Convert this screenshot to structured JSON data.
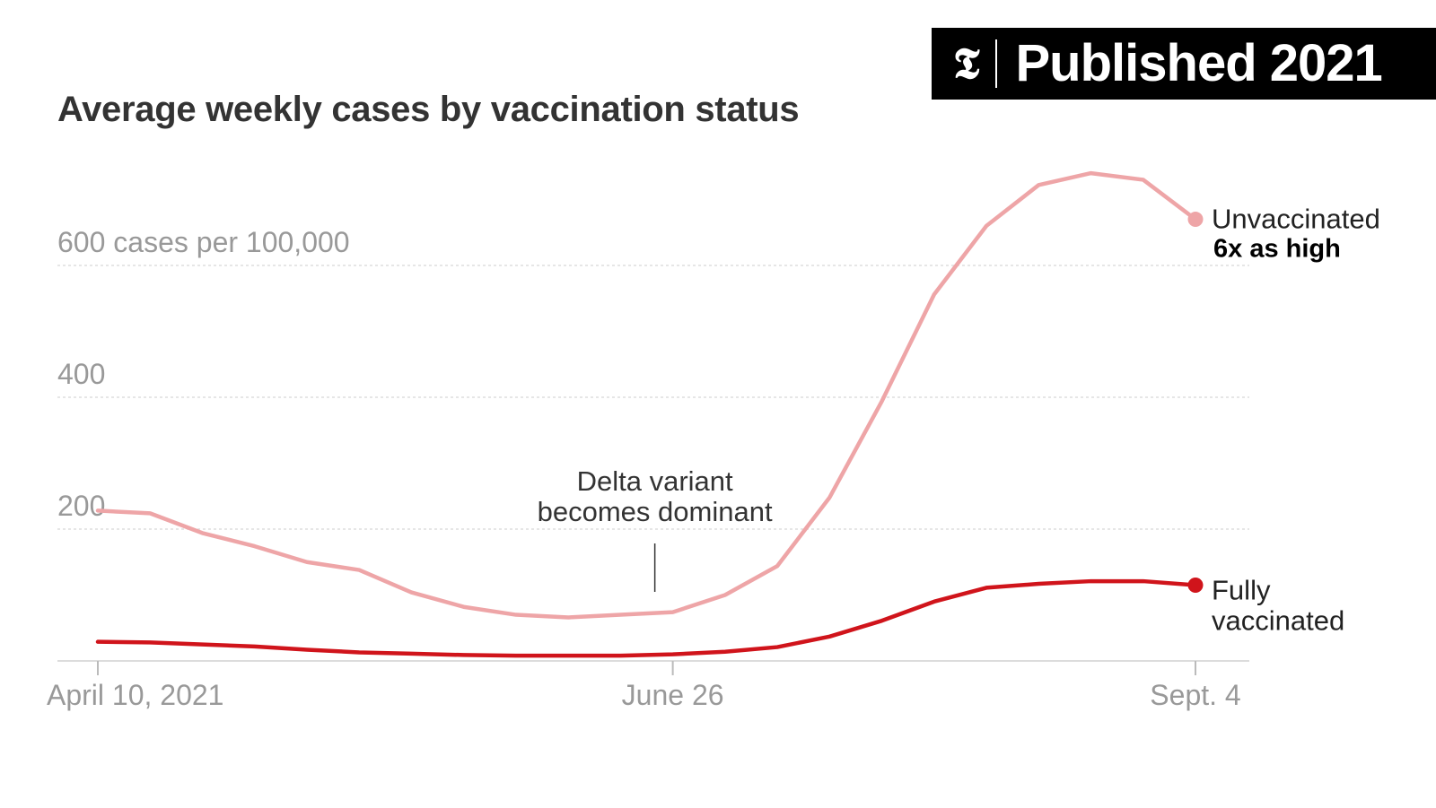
{
  "badge": {
    "logo": "𝕿",
    "text": "Published 2021"
  },
  "chart_data": {
    "type": "line",
    "title": "Average weekly cases by vaccination status",
    "y_unit_label": "cases per 100,000",
    "ylim": [
      0,
      750
    ],
    "yticks": [
      200,
      400,
      600
    ],
    "grid": true,
    "x": [
      "2021-04-10",
      "2021-04-17",
      "2021-04-24",
      "2021-05-01",
      "2021-05-08",
      "2021-05-15",
      "2021-05-22",
      "2021-05-29",
      "2021-06-05",
      "2021-06-12",
      "2021-06-19",
      "2021-06-26",
      "2021-07-03",
      "2021-07-10",
      "2021-07-17",
      "2021-07-24",
      "2021-07-31",
      "2021-08-07",
      "2021-08-14",
      "2021-08-21",
      "2021-08-28",
      "2021-09-04"
    ],
    "xticks": [
      {
        "x": "2021-04-10",
        "label": "April 10, 2021"
      },
      {
        "x": "2021-06-26",
        "label": "June 26"
      },
      {
        "x": "2021-09-04",
        "label": "Sept. 4"
      }
    ],
    "series": [
      {
        "name": "Unvaccinated",
        "color": "#eea5a7",
        "values": [
          228,
          224,
          194,
          174,
          150,
          138,
          104,
          82,
          70,
          66,
          70,
          74,
          100,
          144,
          248,
          394,
          556,
          660,
          722,
          740,
          730,
          670
        ]
      },
      {
        "name": "Fully vaccinated",
        "color": "#d0141b",
        "values": [
          29,
          28,
          25,
          22,
          17,
          13,
          11,
          9,
          8,
          8,
          8,
          10,
          14,
          21,
          37,
          61,
          90,
          111,
          117,
          121,
          121,
          115
        ]
      }
    ],
    "series_notes": {
      "Unvaccinated": "6x as high"
    },
    "annotations": [
      {
        "x": "2021-06-26",
        "lines": [
          "Delta variant",
          "becomes dominant"
        ]
      }
    ]
  }
}
